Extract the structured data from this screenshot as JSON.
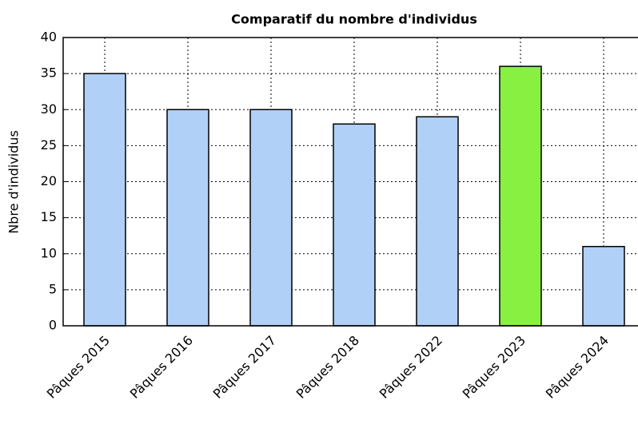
{
  "chart_data": {
    "type": "bar",
    "title": "Comparatif du nombre d'individus",
    "ylabel": "Nbre d'individus",
    "categories": [
      "Pâques 2015",
      "Pâques 2016",
      "Pâques 2017",
      "Pâques 2018",
      "Pâques 2022",
      "Pâques 2023",
      "Pâques 2024"
    ],
    "values": [
      35,
      30,
      30,
      28,
      29,
      36,
      11
    ],
    "colors": [
      "#b0d0f8",
      "#b0d0f8",
      "#b0d0f8",
      "#b0d0f8",
      "#b0d0f8",
      "#88f040",
      "#b0d0f8"
    ],
    "ylim": [
      0,
      40
    ],
    "yticks": [
      0,
      5,
      10,
      15,
      20,
      25,
      30,
      35,
      40
    ],
    "grid": true
  }
}
